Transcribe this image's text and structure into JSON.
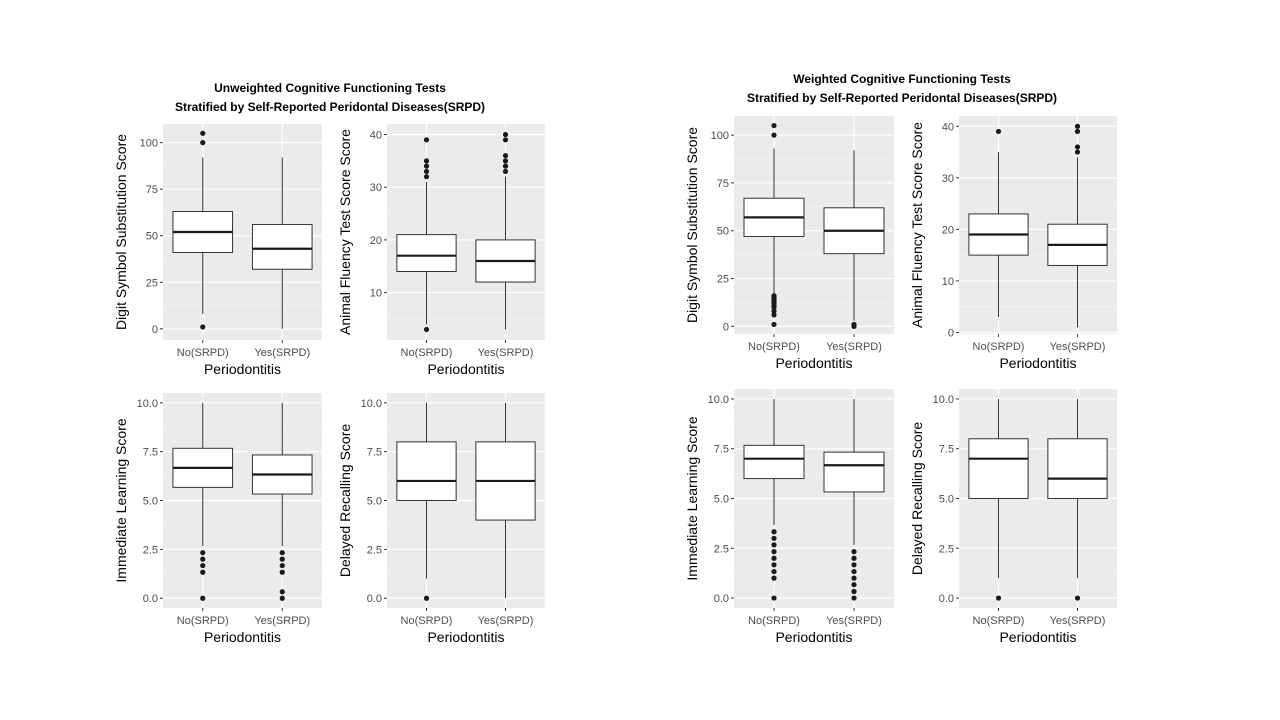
{
  "figures": [
    {
      "title_line1": "Unweighted Cognitive Functioning Tests",
      "title_line2": "Stratified by Self-Reported Peridontal Diseases(SRPD)"
    },
    {
      "title_line1": "Weighted Cognitive Functioning Tests",
      "title_line2": "Stratified by Self-Reported Peridontal Diseases(SRPD)"
    }
  ],
  "chart_data": [
    {
      "type": "box",
      "figure": "Unweighted",
      "xlabel": "Periodontitis",
      "ylabel": "Digit Symbol Substitution Score",
      "categories": [
        "No(SRPD)",
        "Yes(SRPD)"
      ],
      "ylim": [
        -6,
        110
      ],
      "yticks": [
        0,
        25,
        50,
        75,
        100
      ],
      "boxes": [
        {
          "min": 8,
          "q1": 41,
          "median": 52,
          "q3": 63,
          "max": 92,
          "outliers": [
            1,
            100,
            105
          ]
        },
        {
          "min": 0,
          "q1": 32,
          "median": 43,
          "q3": 56,
          "max": 92,
          "outliers": []
        }
      ]
    },
    {
      "type": "box",
      "figure": "Unweighted",
      "xlabel": "Periodontitis",
      "ylabel": "Animal Fluency Test Score Score",
      "categories": [
        "No(SRPD)",
        "Yes(SRPD)"
      ],
      "ylim": [
        1,
        42
      ],
      "yticks": [
        10,
        20,
        30,
        40
      ],
      "boxes": [
        {
          "min": 4,
          "q1": 14,
          "median": 17,
          "q3": 21,
          "max": 31,
          "outliers": [
            3,
            32,
            33,
            34,
            35,
            39
          ]
        },
        {
          "min": 3,
          "q1": 12,
          "median": 16,
          "q3": 20,
          "max": 32,
          "outliers": [
            33,
            34,
            35,
            36,
            39,
            40
          ]
        }
      ]
    },
    {
      "type": "box",
      "figure": "Unweighted",
      "xlabel": "Periodontitis",
      "ylabel": "Immediate Learning Score",
      "categories": [
        "No(SRPD)",
        "Yes(SRPD)"
      ],
      "ylim": [
        -0.5,
        10.5
      ],
      "yticks": [
        0.0,
        2.5,
        5.0,
        7.5,
        10.0
      ],
      "boxes": [
        {
          "min": 2.67,
          "q1": 5.67,
          "median": 6.67,
          "q3": 7.67,
          "max": 10,
          "outliers": [
            0,
            1.33,
            1.67,
            2,
            2.33
          ]
        },
        {
          "min": 2.67,
          "q1": 5.33,
          "median": 6.33,
          "q3": 7.33,
          "max": 10,
          "outliers": [
            0,
            0.33,
            1.33,
            1.67,
            2,
            2.33
          ]
        }
      ]
    },
    {
      "type": "box",
      "figure": "Unweighted",
      "xlabel": "Periodontitis",
      "ylabel": "Delayed Recalling Score",
      "categories": [
        "No(SRPD)",
        "Yes(SRPD)"
      ],
      "ylim": [
        -0.5,
        10.5
      ],
      "yticks": [
        0.0,
        2.5,
        5.0,
        7.5,
        10.0
      ],
      "boxes": [
        {
          "min": 1,
          "q1": 5,
          "median": 6,
          "q3": 8,
          "max": 10,
          "outliers": [
            0
          ]
        },
        {
          "min": 0,
          "q1": 4,
          "median": 6,
          "q3": 8,
          "max": 10,
          "outliers": []
        }
      ]
    },
    {
      "type": "box",
      "figure": "Weighted",
      "xlabel": "Periodontitis",
      "ylabel": "Digit Symbol Substitution Score",
      "categories": [
        "No(SRPD)",
        "Yes(SRPD)"
      ],
      "ylim": [
        -4,
        110
      ],
      "yticks": [
        0,
        25,
        50,
        75,
        100
      ],
      "boxes": [
        {
          "min": 17,
          "q1": 47,
          "median": 57,
          "q3": 67,
          "max": 93,
          "outliers": [
            1,
            6,
            8,
            10,
            11,
            12,
            13,
            14,
            15,
            16,
            100,
            105
          ]
        },
        {
          "min": 3,
          "q1": 38,
          "median": 50,
          "q3": 62,
          "max": 92,
          "outliers": [
            0,
            1
          ]
        }
      ]
    },
    {
      "type": "box",
      "figure": "Weighted",
      "xlabel": "Periodontitis",
      "ylabel": "Animal Fluency Test Score Score",
      "categories": [
        "No(SRPD)",
        "Yes(SRPD)"
      ],
      "ylim": [
        -0.3,
        42
      ],
      "yticks": [
        0,
        10,
        20,
        30,
        40
      ],
      "boxes": [
        {
          "min": 3,
          "q1": 15,
          "median": 19,
          "q3": 23,
          "max": 35,
          "outliers": [
            39
          ]
        },
        {
          "min": 1,
          "q1": 13,
          "median": 17,
          "q3": 21,
          "max": 34,
          "outliers": [
            35,
            36,
            39,
            40
          ]
        }
      ]
    },
    {
      "type": "box",
      "figure": "Weighted",
      "xlabel": "Periodontitis",
      "ylabel": "Immediate Learning Score",
      "categories": [
        "No(SRPD)",
        "Yes(SRPD)"
      ],
      "ylim": [
        -0.5,
        10.5
      ],
      "yticks": [
        0.0,
        2.5,
        5.0,
        7.5,
        10.0
      ],
      "boxes": [
        {
          "min": 3.67,
          "q1": 6,
          "median": 7,
          "q3": 7.67,
          "max": 10,
          "outliers": [
            0,
            1,
            1.33,
            1.67,
            2,
            2.33,
            2.67,
            3,
            3.33
          ]
        },
        {
          "min": 2.67,
          "q1": 5.33,
          "median": 6.67,
          "q3": 7.33,
          "max": 10,
          "outliers": [
            0,
            0.33,
            0.67,
            1,
            1.33,
            1.67,
            2,
            2.33
          ]
        }
      ]
    },
    {
      "type": "box",
      "figure": "Weighted",
      "xlabel": "Periodontitis",
      "ylabel": "Delayed Recalling Score",
      "categories": [
        "No(SRPD)",
        "Yes(SRPD)"
      ],
      "ylim": [
        -0.5,
        10.5
      ],
      "yticks": [
        0.0,
        2.5,
        5.0,
        7.5,
        10.0
      ],
      "boxes": [
        {
          "min": 1,
          "q1": 5,
          "median": 7,
          "q3": 8,
          "max": 10,
          "outliers": [
            0
          ]
        },
        {
          "min": 1,
          "q1": 5,
          "median": 6,
          "q3": 8,
          "max": 10,
          "outliers": [
            0
          ]
        }
      ]
    }
  ]
}
